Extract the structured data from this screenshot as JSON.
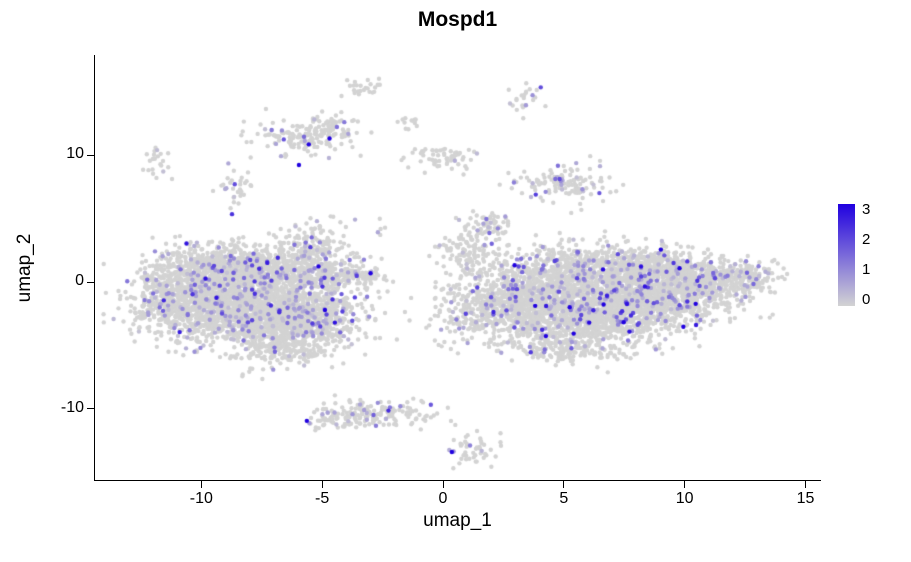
{
  "chart_data": {
    "type": "scatter",
    "title": "Mospd1",
    "xlabel": "umap_1",
    "ylabel": "umap_2",
    "xlim": [
      -14.4,
      15.6
    ],
    "ylim": [
      -15.6,
      17.9
    ],
    "xticks": [
      -10,
      -5,
      0,
      5,
      10,
      15
    ],
    "yticks": [
      -10,
      0,
      10
    ],
    "grid": false,
    "background": "#ffffff",
    "legend": {
      "position": "right",
      "ticks": [
        0,
        1,
        2,
        3
      ],
      "vmin": -0.2,
      "vmax": 3.2
    },
    "colors": {
      "low": "#d3d3d3",
      "high": "#2000e0"
    },
    "expression": {
      "rate": 0.09,
      "scale": 0.7,
      "base": 0.25,
      "max": 3
    },
    "point_radius": 2.2,
    "seed": 42,
    "clusters": [
      {
        "cx": -8.2,
        "cy": -2.2,
        "sx": 1.9,
        "sy": 1.5,
        "n": 1500
      },
      {
        "cx": -6.0,
        "cy": -3.0,
        "sx": 1.3,
        "sy": 1.1,
        "n": 700
      },
      {
        "cx": -10.4,
        "cy": -0.6,
        "sx": 1.1,
        "sy": 1.3,
        "n": 500
      },
      {
        "cx": -6.8,
        "cy": 0.8,
        "sx": 1.5,
        "sy": 1.0,
        "n": 600
      },
      {
        "cx": -9.2,
        "cy": 1.4,
        "sx": 1.2,
        "sy": 0.9,
        "n": 400
      },
      {
        "cx": -5.3,
        "cy": 2.9,
        "sx": 0.7,
        "sy": 0.9,
        "n": 140
      },
      {
        "cx": -4.1,
        "cy": 0.5,
        "sx": 0.9,
        "sy": 0.5,
        "n": 170
      },
      {
        "cx": -11.8,
        "cy": -1.0,
        "sx": 0.5,
        "sy": 1.3,
        "n": 130
      },
      {
        "cx": -6.4,
        "cy": -5.3,
        "sx": 0.9,
        "sy": 0.6,
        "n": 130
      },
      {
        "cx": 2.8,
        "cy": -1.8,
        "sx": 1.3,
        "sy": 1.4,
        "n": 800
      },
      {
        "cx": 6.2,
        "cy": -2.5,
        "sx": 1.7,
        "sy": 1.3,
        "n": 1100
      },
      {
        "cx": 9.0,
        "cy": -1.2,
        "sx": 1.5,
        "sy": 1.2,
        "n": 800
      },
      {
        "cx": 5.6,
        "cy": 0.8,
        "sx": 1.5,
        "sy": 1.1,
        "n": 700
      },
      {
        "cx": 8.8,
        "cy": 1.0,
        "sx": 1.3,
        "sy": 0.9,
        "n": 500
      },
      {
        "cx": 11.3,
        "cy": 0.2,
        "sx": 1.0,
        "sy": 0.8,
        "n": 280
      },
      {
        "cx": 12.7,
        "cy": 0.4,
        "sx": 0.5,
        "sy": 0.5,
        "n": 90
      },
      {
        "cx": 1.9,
        "cy": 4.3,
        "sx": 0.5,
        "sy": 0.7,
        "n": 70
      },
      {
        "cx": 1.1,
        "cy": 2.2,
        "sx": 0.7,
        "sy": 0.8,
        "n": 110
      },
      {
        "cx": 4.8,
        "cy": -5.3,
        "sx": 1.1,
        "sy": 0.6,
        "n": 150
      },
      {
        "cx": 0.5,
        "cy": -2.8,
        "sx": 0.8,
        "sy": 1.0,
        "n": 50
      },
      {
        "cx": -5.7,
        "cy": 11.3,
        "sx": 1.1,
        "sy": 0.7,
        "n": 150
      },
      {
        "cx": -4.6,
        "cy": 12.4,
        "sx": 0.5,
        "sy": 0.5,
        "n": 45
      },
      {
        "cx": -11.9,
        "cy": 9.5,
        "sx": 0.35,
        "sy": 0.65,
        "n": 22
      },
      {
        "cx": -8.7,
        "cy": 7.2,
        "sx": 0.35,
        "sy": 0.85,
        "n": 32,
        "expr_rate": 0.3
      },
      {
        "cx": -0.3,
        "cy": 9.9,
        "sx": 0.75,
        "sy": 0.5,
        "n": 60
      },
      {
        "cx": 5.0,
        "cy": 7.8,
        "sx": 0.95,
        "sy": 0.7,
        "n": 130,
        "expr_rate": 0.18
      },
      {
        "cx": 3.5,
        "cy": 14.4,
        "sx": 0.4,
        "sy": 0.5,
        "n": 24,
        "expr_rate": 0.2
      },
      {
        "cx": -3.3,
        "cy": 15.4,
        "sx": 0.55,
        "sy": 0.4,
        "n": 24
      },
      {
        "cx": -1.4,
        "cy": 12.5,
        "sx": 0.4,
        "sy": 0.3,
        "n": 12
      },
      {
        "cx": -2.8,
        "cy": -10.3,
        "sx": 1.3,
        "sy": 0.55,
        "n": 150
      },
      {
        "cx": -4.4,
        "cy": -11.0,
        "sx": 0.6,
        "sy": 0.4,
        "n": 45
      },
      {
        "cx": 1.3,
        "cy": -13.3,
        "sx": 0.5,
        "sy": 0.6,
        "n": 45
      },
      {
        "cx": -7.8,
        "cy": -7.0,
        "sx": 0.5,
        "sy": 0.4,
        "n": 7
      },
      {
        "cx": -2.9,
        "cy": 4.6,
        "sx": 1.0,
        "sy": 1.0,
        "n": 8
      }
    ]
  }
}
